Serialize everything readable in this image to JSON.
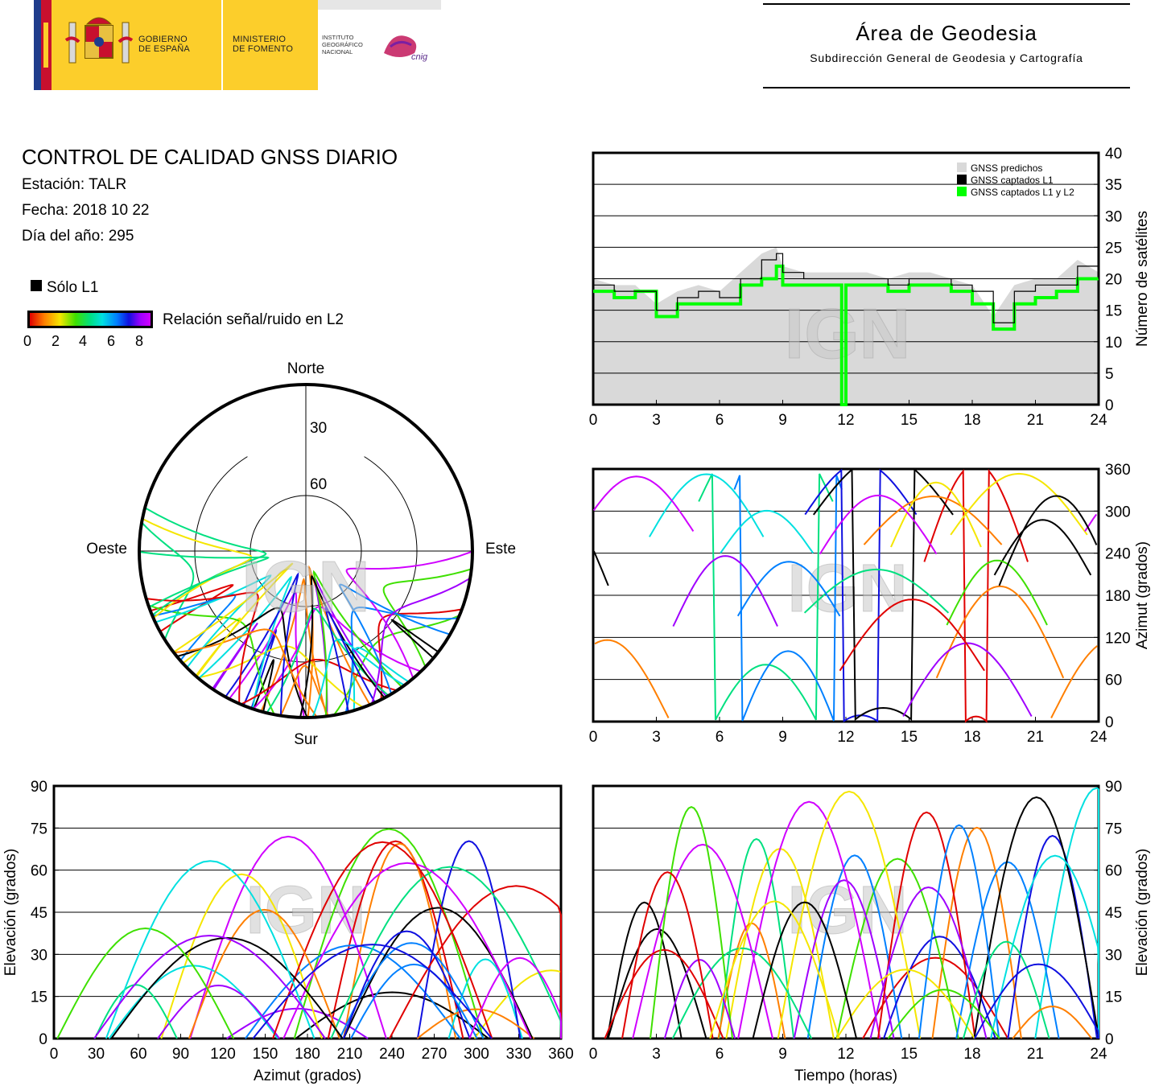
{
  "header": {
    "gobierno": [
      "GOBIERNO",
      "DE ESPAÑA"
    ],
    "ministerio": [
      "MINISTERIO",
      "DE FOMENTO"
    ],
    "instituto": [
      "INSTITUTO",
      "GEOGRÁFICO",
      "NACIONAL"
    ],
    "cnig": "cnig",
    "area_title": "Área de Geodesia",
    "area_subtitle": "Subdirección General de Geodesia y Cartografía"
  },
  "report": {
    "title": "CONTROL DE CALIDAD GNSS DIARIO",
    "station": "Estación: TALR",
    "date": "Fecha: 2018 10 22",
    "doy": "Día del año: 295",
    "solo_l1": "Sólo L1",
    "snr_label": "Relación señal/ruido en L2",
    "snr_ticks": [
      "0",
      "2",
      "4",
      "6",
      "8"
    ]
  },
  "colors": {
    "predicted": "#d9d9d9",
    "l1": "#000000",
    "l1_l2": "#00ff00",
    "snr_scale": [
      "#e00000",
      "#ff7f00",
      "#f5e600",
      "#3ee000",
      "#00e080",
      "#00e0e0",
      "#0080ff",
      "#1010e0",
      "#a000ff",
      "#d000ff"
    ]
  },
  "watermark": "IGN",
  "chart_data": [
    {
      "type": "line",
      "ylabel": "Número de satélites",
      "xlim": [
        0,
        24
      ],
      "ylim": [
        0,
        40
      ],
      "xticks": [
        "0",
        "3",
        "6",
        "9",
        "12",
        "15",
        "18",
        "21",
        "24"
      ],
      "yticks": [
        "0",
        "5",
        "10",
        "15",
        "20",
        "25",
        "30",
        "35",
        "40"
      ],
      "grid": true,
      "legend": {
        "position": "top-right",
        "entries": [
          "GNSS predichos",
          "GNSS captados L1",
          "GNSS captados L1 y L2"
        ]
      },
      "x": [
        0,
        1,
        2,
        3,
        4,
        5,
        6,
        7,
        8,
        8.7,
        9,
        10,
        11,
        11.7,
        11.8,
        12,
        13,
        14,
        15,
        16,
        17,
        18,
        19,
        20,
        21,
        22,
        23,
        24
      ],
      "series": [
        {
          "name": "GNSS predichos",
          "values": [
            20,
            19,
            19,
            16,
            18,
            19,
            18,
            21,
            24,
            25,
            22,
            21,
            21,
            21,
            21,
            21,
            21,
            20,
            21,
            21,
            20,
            19,
            14,
            19,
            20,
            20,
            23,
            21
          ]
        },
        {
          "name": "GNSS captados L1",
          "values": [
            19,
            18,
            18,
            15,
            17,
            18,
            17,
            20,
            23,
            24,
            21,
            20,
            20,
            20,
            20,
            20,
            20,
            19,
            20,
            20,
            19,
            18,
            13,
            18,
            19,
            19,
            22,
            20
          ]
        },
        {
          "name": "GNSS captados L1 y L2",
          "values": [
            18,
            17,
            18,
            14,
            16,
            16,
            16,
            19,
            20,
            22,
            19,
            19,
            19,
            19,
            0,
            19,
            19,
            18,
            19,
            19,
            18,
            16,
            12,
            16,
            17,
            18,
            20,
            20
          ]
        }
      ]
    },
    {
      "type": "scatter",
      "ylabel": "Azimut (grados)",
      "xlim": [
        0,
        24
      ],
      "ylim": [
        0,
        360
      ],
      "xticks": [
        "0",
        "3",
        "6",
        "9",
        "12",
        "15",
        "18",
        "21",
        "24"
      ],
      "yticks": [
        "0",
        "60",
        "120",
        "180",
        "240",
        "300",
        "360"
      ],
      "grid": true
    },
    {
      "type": "scatter",
      "xlabel": "Azimut (grados)",
      "ylabel": "Elevación (grados)",
      "xlim": [
        0,
        360
      ],
      "ylim": [
        0,
        90
      ],
      "xticks": [
        "0",
        "30",
        "60",
        "90",
        "120",
        "150",
        "180",
        "210",
        "240",
        "270",
        "300",
        "330",
        "360"
      ],
      "yticks": [
        "0",
        "15",
        "30",
        "45",
        "60",
        "75",
        "90"
      ],
      "grid": true
    },
    {
      "type": "scatter",
      "xlabel": "Tiempo (horas)",
      "ylabel": "Elevación (grados)",
      "xlim": [
        0,
        24
      ],
      "ylim": [
        0,
        90
      ],
      "xticks": [
        "0",
        "3",
        "6",
        "9",
        "12",
        "15",
        "18",
        "21",
        "24"
      ],
      "yticks": [
        "0",
        "15",
        "30",
        "45",
        "60",
        "75",
        "90"
      ],
      "grid": true
    },
    {
      "type": "scatter",
      "subtype": "polar skyplot",
      "directions": {
        "north": "Norte",
        "south": "Sur",
        "east": "Este",
        "west": "Oeste"
      },
      "rings": [
        "30",
        "60"
      ]
    }
  ]
}
